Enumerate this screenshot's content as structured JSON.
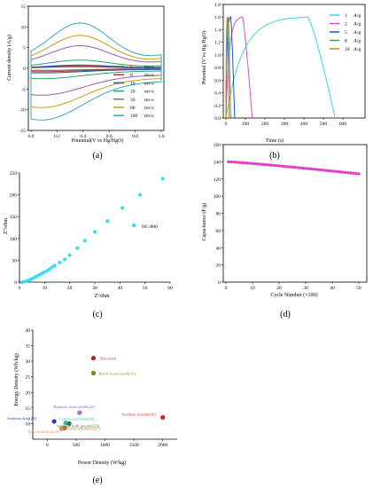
{
  "chart_data": [
    {
      "panel": "(a)",
      "type": "line",
      "xlabel": "Potential(V vs Hg/HgO)",
      "ylabel": "Current density (A/g)",
      "xlim": [
        0,
        1.0
      ],
      "ylim": [
        -15,
        15
      ],
      "xticks": [
        "0.0",
        "0.2",
        "0.4",
        "0.6",
        "0.8",
        "1.0"
      ],
      "yticks": [
        "-15",
        "-10",
        "-5",
        "0",
        "5",
        "10",
        "15"
      ],
      "legend": "lower-right",
      "series": [
        {
          "name": "5",
          "unit": "mv/s",
          "color": "#555555",
          "upper_peak": 0.4,
          "lower_min": -0.5
        },
        {
          "name": "8",
          "unit": "mv/s",
          "color": "#c0392b",
          "upper_peak": 0.6,
          "lower_min": -0.8
        },
        {
          "name": "10",
          "unit": "mv/s",
          "color": "#1f4fbf",
          "upper_peak": 0.8,
          "lower_min": -1.1
        },
        {
          "name": "20",
          "unit": "mv/s",
          "color": "#27a36a",
          "upper_peak": 2.0,
          "lower_min": -2.5
        },
        {
          "name": "50",
          "unit": "mv/s",
          "color": "#9b59b6",
          "upper_peak": 5.5,
          "lower_min": -6.5
        },
        {
          "name": "80",
          "unit": "mv/s",
          "color": "#c7a010",
          "upper_peak": 8.0,
          "lower_min": -9.5
        },
        {
          "name": "100",
          "unit": "mv/s",
          "color": "#35aabd",
          "upper_peak": 11.0,
          "lower_min": -12.5
        }
      ]
    },
    {
      "panel": "(b)",
      "type": "line",
      "xlabel": "Time (s)",
      "ylabel": "Potential (V vs Hg/HgO)",
      "xlim": [
        0,
        700
      ],
      "ylim": [
        0,
        1.8
      ],
      "xticks": [
        "0",
        "100",
        "200",
        "300",
        "400",
        "500",
        "600"
      ],
      "yticks": [
        "0.0",
        "0.2",
        "0.4",
        "0.6",
        "0.8",
        "1.0",
        "1.2",
        "1.4",
        "1.6",
        "1.8"
      ],
      "legend": "right",
      "series": [
        {
          "name": "1",
          "unit": "A/g",
          "color": "#35d6e6",
          "charge_end": 420,
          "discharge_end": 560
        },
        {
          "name": "2",
          "unit": "A/g",
          "color": "#e04fc0",
          "charge_end": 85,
          "discharge_end": 135
        },
        {
          "name": "5",
          "unit": "A/g",
          "color": "#1f4fbf",
          "charge_end": 25,
          "discharge_end": 45
        },
        {
          "name": "8",
          "unit": "A/g",
          "color": "#27a36a",
          "charge_end": 12,
          "discharge_end": 24
        },
        {
          "name": "10",
          "unit": "A/g",
          "color": "#e07b1a",
          "charge_end": 8,
          "discharge_end": 16
        }
      ]
    },
    {
      "panel": "(c)",
      "type": "scatter",
      "xlabel": "Z'/ohm",
      "ylabel": "Z''/ohm",
      "xlim": [
        0,
        60
      ],
      "ylim": [
        0,
        250
      ],
      "xticks": [
        "0",
        "10",
        "20",
        "30",
        "40",
        "50",
        "60"
      ],
      "yticks": [
        "0",
        "50",
        "100",
        "150",
        "200",
        "250"
      ],
      "legend": "right",
      "series": [
        {
          "name": "NC-800",
          "color": "#35e0ea",
          "x": [
            1,
            2,
            3,
            4,
            5,
            6,
            7,
            8,
            9,
            10,
            11,
            12,
            13,
            14,
            16,
            18,
            20,
            23,
            26,
            30,
            35,
            41,
            48,
            57
          ],
          "y": [
            0,
            1,
            3,
            5,
            8,
            11,
            14,
            17,
            20,
            23,
            26,
            30,
            34,
            38,
            45,
            52,
            62,
            78,
            95,
            115,
            140,
            170,
            200,
            237
          ]
        }
      ]
    },
    {
      "panel": "(d)",
      "type": "scatter",
      "xlabel": "Cycle Number (×100)",
      "ylabel": "Capacitance (F/g)",
      "xlim": [
        0,
        52
      ],
      "ylim": [
        0,
        160
      ],
      "xticks": [
        "0",
        "10",
        "20",
        "30",
        "40",
        "50"
      ],
      "yticks": [
        "0",
        "20",
        "40",
        "60",
        "80",
        "100",
        "120",
        "140",
        "160"
      ],
      "series": [
        {
          "name": "",
          "color": "#e040c8",
          "start": 140,
          "end": 126,
          "cycles": [
            1,
            50
          ]
        }
      ]
    },
    {
      "panel": "(e)",
      "type": "scatter",
      "xlabel": "Power Density (W/kg)",
      "ylabel": "Energy Density (Wh/kg)",
      "xlim": [
        -250,
        2250
      ],
      "ylim": [
        5,
        40
      ],
      "xticks": [
        "0",
        "500",
        "1000",
        "1500",
        "2000"
      ],
      "yticks": [
        "10",
        "15",
        "20",
        "25",
        "30",
        "35",
        "40"
      ],
      "points": [
        {
          "label": "This work",
          "x": 800,
          "y": 31,
          "color": "#b02020",
          "labelcolor": "#b02020"
        },
        {
          "label": "Black locust seeds[21]",
          "x": 800,
          "y": 26.2,
          "color": "#8a8a10",
          "labelcolor": "#8a8a10"
        },
        {
          "label": "Bamboo shoot shells[22]",
          "x": 560,
          "y": 13.5,
          "color": "#b070d0",
          "labelcolor": "#9a50c0"
        },
        {
          "label": "Soybean residue[26]",
          "x": 2000,
          "y": 12.0,
          "color": "#e02020",
          "labelcolor": "#e02020"
        },
        {
          "label": "Soybean dreg[23]",
          "x": 120,
          "y": 10.7,
          "color": "#1f3fbf",
          "labelcolor": "#1f3fbf"
        },
        {
          "label": "Cotton seed husk[24]",
          "x": 320,
          "y": 10.2,
          "color": "#30b8c8",
          "labelcolor": "#30b8c8"
        },
        {
          "label": "Soybean milk powder[25]",
          "x": 380,
          "y": 10.0,
          "color": "#208040",
          "labelcolor": "#208040"
        },
        {
          "label": "Salvia splendens[27]",
          "x": 300,
          "y": 8.6,
          "color": "#c07020",
          "labelcolor": "#c07020"
        },
        {
          "label": "Rose multiflora[28]",
          "x": 250,
          "y": 8.4,
          "color": "#e09a40",
          "labelcolor": "#e09a40"
        }
      ]
    }
  ]
}
